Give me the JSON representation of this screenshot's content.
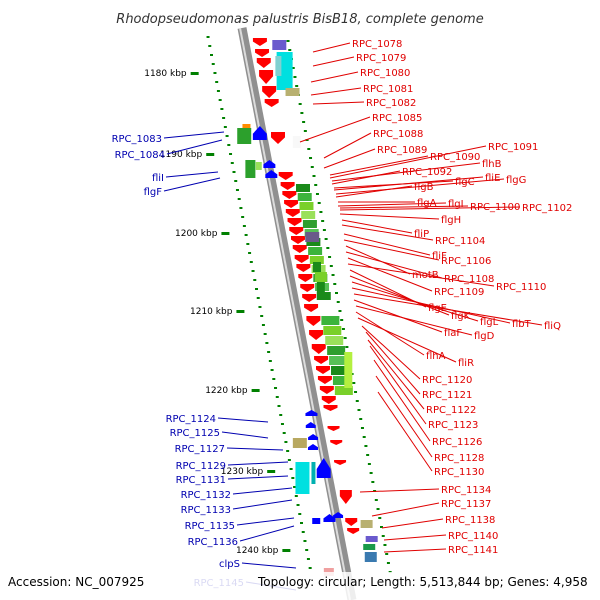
{
  "title": "Rhodopseudomonas palustris BisB18, complete genome",
  "footer": {
    "accession": "Accession: NC_007925",
    "summary": "Topology: circular; Length: 5,513,844 bp; Genes: 4,958"
  },
  "colors": {
    "reverse_strand": "#ff0000",
    "forward_strand": "#0000ff",
    "reverse_label": "#e00000",
    "forward_label": "#0000b0",
    "backbone": "#909090",
    "tick": "#008000"
  },
  "scale": [
    {
      "label": "1180 kbp",
      "kbp": 1180
    },
    {
      "label": "1190 kbp",
      "kbp": 1190
    },
    {
      "label": "1200 kbp",
      "kbp": 1200
    },
    {
      "label": "1210 kbp",
      "kbp": 1210
    },
    {
      "label": "1220 kbp",
      "kbp": 1220
    },
    {
      "label": "1230 kbp",
      "kbp": 1230
    },
    {
      "label": "1240 kbp",
      "kbp": 1240
    }
  ],
  "right_labels": [
    "RPC_1078",
    "RPC_1079",
    "RPC_1080",
    "RPC_1081",
    "RPC_1082",
    "RPC_1085",
    "RPC_1088",
    "RPC_1089",
    "RPC_1090",
    "RPC_1091",
    "flhB",
    "RPC_1092",
    "flgC",
    "fliE",
    "flgG",
    "flgB",
    "flgA",
    "flgI",
    "RPC_1100",
    "RPC_1102",
    "flgH",
    "fliP",
    "RPC_1104",
    "fliF",
    "RPC_1106",
    "motB",
    "RPC_1108",
    "RPC_1109",
    "RPC_1110",
    "flgE",
    "flgK",
    "flgL",
    "flbT",
    "fliQ",
    "flaF",
    "flgD",
    "flhA",
    "fliR",
    "RPC_1120",
    "RPC_1121",
    "RPC_1122",
    "RPC_1123",
    "RPC_1126",
    "RPC_1128",
    "RPC_1130",
    "RPC_1134",
    "RPC_1137",
    "RPC_1138",
    "RPC_1140",
    "RPC_1141"
  ],
  "left_labels": [
    "RPC_1083",
    "RPC_1084",
    "fliI",
    "flgF",
    "RPC_1124",
    "RPC_1125",
    "RPC_1127",
    "RPC_1129",
    "RPC_1131",
    "RPC_1132",
    "RPC_1133",
    "RPC_1135",
    "RPC_1136",
    "clpS",
    "RPC_1145"
  ]
}
